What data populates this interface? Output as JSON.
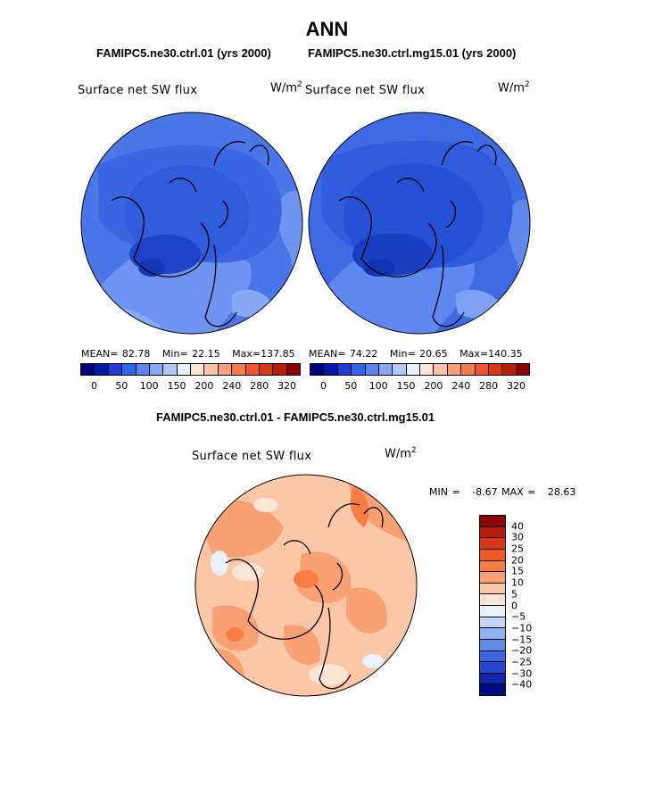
{
  "title": "ANN",
  "panel_left": {
    "case_label": "FAMIPC5.ne30.ctrl.01 (yrs 2000)",
    "variable": "Surface net SW flux",
    "unit_base": "W/m",
    "unit_exp": "2",
    "stats": {
      "mean_label": "MEAN=",
      "mean": "82.78",
      "min_label": "Min=",
      "min": "22.15",
      "max_label": "Max=",
      "max": "137.85"
    }
  },
  "panel_right": {
    "case_label": "FAMIPC5.ne30.ctrl.mg15.01 (yrs 2000)",
    "variable": "Surface net SW flux",
    "unit_base": "W/m",
    "unit_exp": "2",
    "stats": {
      "mean_label": "MEAN=",
      "mean": "74.22",
      "min_label": "Min=",
      "min": "20.65",
      "max_label": "Max=",
      "max": "140.35"
    }
  },
  "panel_diff": {
    "case_label": "FAMIPC5.ne30.ctrl.01 - FAMIPC5.ne30.ctrl.mg15.01",
    "variable": "Surface net SW flux",
    "unit_base": "W/m",
    "unit_exp": "2",
    "minmax": "MIN =   -8.67 MAX =   28.63"
  },
  "abs_colorbar": {
    "colors": [
      "#00007f",
      "#0019a6",
      "#1f3dcf",
      "#3366e6",
      "#5b86ef",
      "#86a8f5",
      "#b2c8f9",
      "#e8f0fc",
      "#fde4d4",
      "#fbc3a6",
      "#f9a07b",
      "#f57a52",
      "#ee5530",
      "#d93a16",
      "#b51f0a",
      "#8b0000"
    ],
    "labels": [
      "0",
      "50",
      "100",
      "150",
      "200",
      "240",
      "280",
      "320"
    ]
  },
  "diff_colorbar": {
    "colors": [
      "#8b0000",
      "#b81c0c",
      "#d9361a",
      "#f05a26",
      "#f77d45",
      "#f9a172",
      "#fbc7a6",
      "#fde5d5",
      "#e9f1fc",
      "#c3d6f8",
      "#8fb2f2",
      "#5f8ce9",
      "#3b66df",
      "#2347cf",
      "#1126ac",
      "#000a80"
    ],
    "labels": [
      "40",
      "30",
      "25",
      "20",
      "15",
      "10",
      "5",
      "0",
      "−5",
      "−10",
      "−15",
      "−20",
      "−25",
      "−30",
      "−40"
    ]
  }
}
